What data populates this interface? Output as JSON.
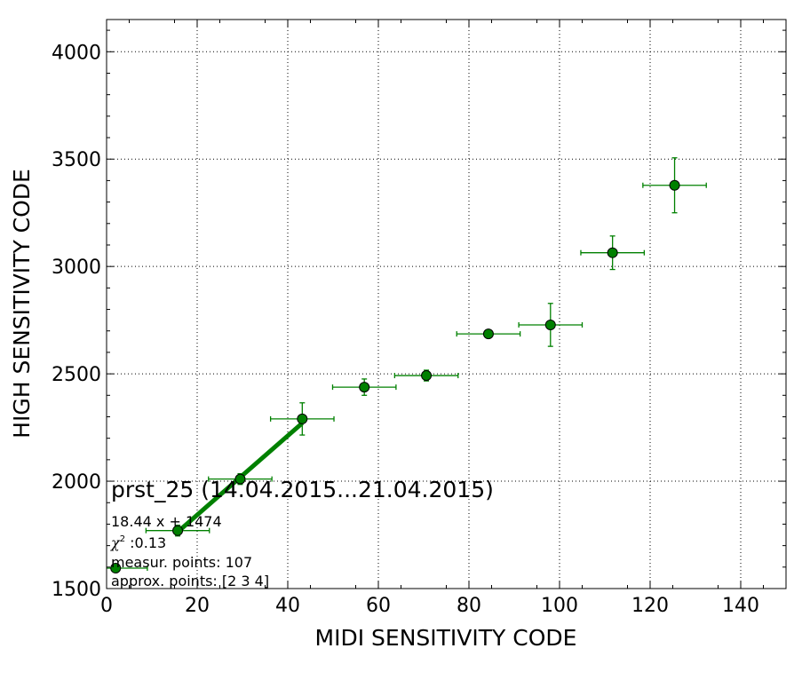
{
  "chart_data": {
    "type": "scatter",
    "xlabel": "MIDI SENSITIVITY CODE",
    "ylabel": "HIGH SENSITIVITY CODE",
    "xlim": [
      0,
      150
    ],
    "ylim": [
      1500,
      4150
    ],
    "x_ticks": [
      0,
      20,
      40,
      60,
      80,
      100,
      120,
      140
    ],
    "y_ticks": [
      1500,
      2000,
      2500,
      3000,
      3500,
      4000
    ],
    "grid": true,
    "colors": {
      "marker_fill": "#008000",
      "marker_edge": "#000000",
      "errorbar": "#008000",
      "fit_line": "#008000"
    },
    "points": [
      {
        "x": 2,
        "y": 1595,
        "xerr": 7,
        "yerr": 12
      },
      {
        "x": 15.7,
        "y": 1770,
        "xerr": 7,
        "yerr": 25
      },
      {
        "x": 29.5,
        "y": 2010,
        "xerr": 7,
        "yerr": 25
      },
      {
        "x": 43.2,
        "y": 2290,
        "xerr": 7,
        "yerr": 75
      },
      {
        "x": 56.9,
        "y": 2438,
        "xerr": 7,
        "yerr": 38
      },
      {
        "x": 70.6,
        "y": 2492,
        "xerr": 7,
        "yerr": 25
      },
      {
        "x": 84.3,
        "y": 2686,
        "xerr": 7,
        "yerr": 15
      },
      {
        "x": 98.0,
        "y": 2728,
        "xerr": 7,
        "yerr": 100
      },
      {
        "x": 111.7,
        "y": 3064,
        "xerr": 7,
        "yerr": 78
      },
      {
        "x": 125.4,
        "y": 3378,
        "xerr": 7,
        "yerr": 128
      }
    ],
    "fit_line": {
      "slope": 18.44,
      "intercept": 1474,
      "x_from": 15.7,
      "x_to": 43.2
    },
    "annotations": {
      "title": "prst_25 (14.04.2015...21.04.2015)",
      "equation": "18.44 x + 1474",
      "chi2_symbol": "χ",
      "chi2_sup": "2",
      "chi2_value": " :0.13",
      "measur_points": "measur. points: 107",
      "approx_points": "approx. points: [2 3 4]"
    }
  }
}
